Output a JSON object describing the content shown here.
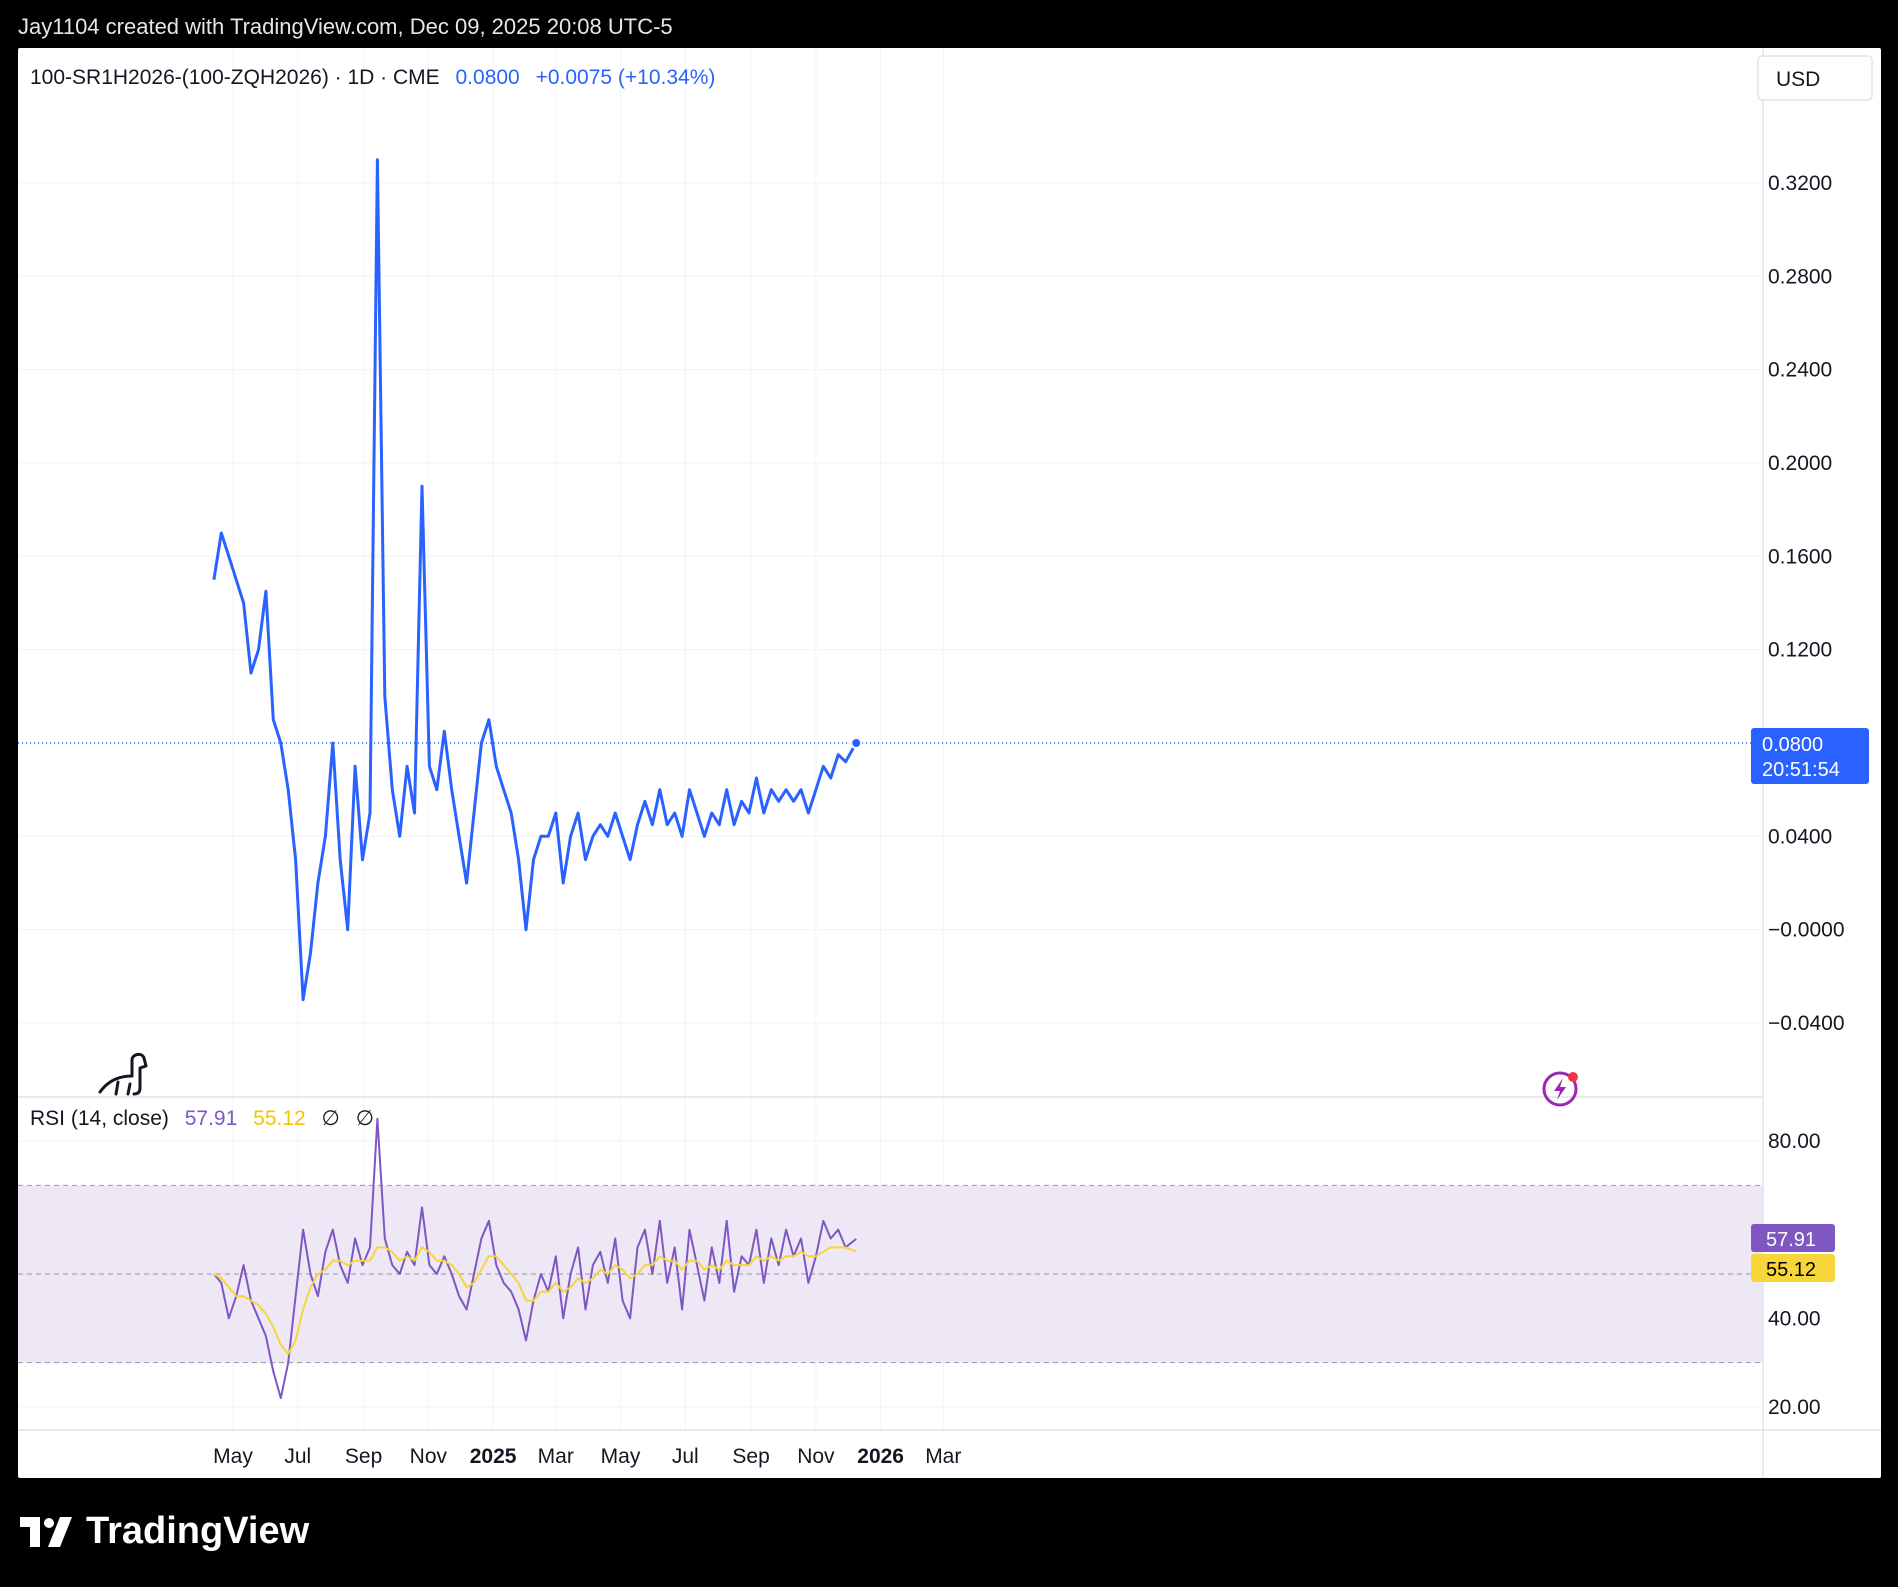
{
  "header": {
    "credit": "Jay1104 created with TradingView.com, Dec 09, 2025 20:08 UTC-5"
  },
  "legend": {
    "symbol": "100-SR1H2026-(100-ZQH2026) · 1D · CME",
    "last": "0.0800",
    "change": "+0.0075 (+10.34%)"
  },
  "currency": "USD",
  "price_axis": {
    "ticks": [
      "0.3200",
      "0.2800",
      "0.2400",
      "0.2000",
      "0.1600",
      "0.1200",
      "0.0400",
      "−0.0000",
      "−0.0400"
    ],
    "last_label": "0.0800",
    "countdown": "20:51:54"
  },
  "rsi": {
    "title": "RSI (14, close)",
    "value": "57.91",
    "ma_value": "55.12",
    "null1": "∅",
    "null2": "∅",
    "ticks": [
      "80.00",
      "40.00",
      "20.00"
    ]
  },
  "time_axis": [
    "May",
    "Jul",
    "Sep",
    "Nov",
    "2025",
    "Mar",
    "May",
    "Jul",
    "Sep",
    "Nov",
    "2026",
    "Mar"
  ],
  "footer": {
    "brand": "TradingView"
  },
  "colors": {
    "price_line": "#2962ff",
    "rsi_line": "#7e57c2",
    "rsi_ma": "#f7d63a",
    "rsi_band": "#ede7f6"
  },
  "chart_data": [
    {
      "type": "line",
      "title": "100-SR1H2026-(100-ZQH2026) · 1D · CME",
      "x": [
        "2024-04-13",
        "2024-04-20",
        "2024-04-27",
        "2024-05-04",
        "2024-05-11",
        "2024-05-18",
        "2024-05-25",
        "2024-06-01",
        "2024-06-08",
        "2024-06-15",
        "2024-06-22",
        "2024-06-29",
        "2024-07-06",
        "2024-07-13",
        "2024-07-20",
        "2024-07-27",
        "2024-08-03",
        "2024-08-10",
        "2024-08-17",
        "2024-08-24",
        "2024-08-31",
        "2024-09-07",
        "2024-09-14",
        "2024-09-21",
        "2024-09-28",
        "2024-10-05",
        "2024-10-12",
        "2024-10-19",
        "2024-10-26",
        "2024-11-02",
        "2024-11-09",
        "2024-11-16",
        "2024-11-23",
        "2024-11-30",
        "2024-12-07",
        "2024-12-14",
        "2024-12-21",
        "2024-12-28",
        "2025-01-04",
        "2025-01-11",
        "2025-01-18",
        "2025-01-25",
        "2025-02-01",
        "2025-02-08",
        "2025-02-15",
        "2025-02-22",
        "2025-03-01",
        "2025-03-08",
        "2025-03-15",
        "2025-03-22",
        "2025-03-29",
        "2025-04-05",
        "2025-04-12",
        "2025-04-19",
        "2025-04-26",
        "2025-05-03",
        "2025-05-10",
        "2025-05-17",
        "2025-05-24",
        "2025-05-31",
        "2025-06-07",
        "2025-06-14",
        "2025-06-21",
        "2025-06-28",
        "2025-07-05",
        "2025-07-12",
        "2025-07-19",
        "2025-07-26",
        "2025-08-02",
        "2025-08-09",
        "2025-08-16",
        "2025-08-23",
        "2025-08-30",
        "2025-09-06",
        "2025-09-13",
        "2025-09-20",
        "2025-09-27",
        "2025-10-04",
        "2025-10-11",
        "2025-10-18",
        "2025-10-25",
        "2025-11-01",
        "2025-11-08",
        "2025-11-15",
        "2025-11-22",
        "2025-11-29",
        "2025-12-09"
      ],
      "series": [
        {
          "values": [
            0.15,
            0.17,
            0.16,
            0.15,
            0.14,
            0.11,
            0.12,
            0.145,
            0.09,
            0.08,
            0.06,
            0.03,
            -0.03,
            -0.01,
            0.02,
            0.04,
            0.08,
            0.03,
            0.0,
            0.07,
            0.03,
            0.05,
            0.33,
            0.1,
            0.06,
            0.04,
            0.07,
            0.05,
            0.19,
            0.07,
            0.06,
            0.085,
            0.06,
            0.04,
            0.02,
            0.05,
            0.08,
            0.09,
            0.07,
            0.06,
            0.05,
            0.03,
            0.0,
            0.03,
            0.04,
            0.04,
            0.05,
            0.02,
            0.04,
            0.05,
            0.03,
            0.04,
            0.045,
            0.04,
            0.05,
            0.04,
            0.03,
            0.045,
            0.055,
            0.045,
            0.06,
            0.045,
            0.05,
            0.04,
            0.06,
            0.05,
            0.04,
            0.05,
            0.045,
            0.06,
            0.045,
            0.055,
            0.05,
            0.065,
            0.05,
            0.06,
            0.055,
            0.06,
            0.055,
            0.06,
            0.05,
            0.06,
            0.07,
            0.065,
            0.075,
            0.072,
            0.08
          ]
        }
      ],
      "ylim": [
        -0.06,
        0.36
      ],
      "grid": true
    },
    {
      "type": "line",
      "title": "RSI (14, close)",
      "x": [
        "2024-04-13",
        "2024-04-20",
        "2024-04-27",
        "2024-05-04",
        "2024-05-11",
        "2024-05-18",
        "2024-05-25",
        "2024-06-01",
        "2024-06-08",
        "2024-06-15",
        "2024-06-22",
        "2024-06-29",
        "2024-07-06",
        "2024-07-13",
        "2024-07-20",
        "2024-07-27",
        "2024-08-03",
        "2024-08-10",
        "2024-08-17",
        "2024-08-24",
        "2024-08-31",
        "2024-09-07",
        "2024-09-14",
        "2024-09-21",
        "2024-09-28",
        "2024-10-05",
        "2024-10-12",
        "2024-10-19",
        "2024-10-26",
        "2024-11-02",
        "2024-11-09",
        "2024-11-16",
        "2024-11-23",
        "2024-11-30",
        "2024-12-07",
        "2024-12-14",
        "2024-12-21",
        "2024-12-28",
        "2025-01-04",
        "2025-01-11",
        "2025-01-18",
        "2025-01-25",
        "2025-02-01",
        "2025-02-08",
        "2025-02-15",
        "2025-02-22",
        "2025-03-01",
        "2025-03-08",
        "2025-03-15",
        "2025-03-22",
        "2025-03-29",
        "2025-04-05",
        "2025-04-12",
        "2025-04-19",
        "2025-04-26",
        "2025-05-03",
        "2025-05-10",
        "2025-05-17",
        "2025-05-24",
        "2025-05-31",
        "2025-06-07",
        "2025-06-14",
        "2025-06-21",
        "2025-06-28",
        "2025-07-05",
        "2025-07-12",
        "2025-07-19",
        "2025-07-26",
        "2025-08-02",
        "2025-08-09",
        "2025-08-16",
        "2025-08-23",
        "2025-08-30",
        "2025-09-06",
        "2025-09-13",
        "2025-09-20",
        "2025-09-27",
        "2025-10-04",
        "2025-10-11",
        "2025-10-18",
        "2025-10-25",
        "2025-11-01",
        "2025-11-08",
        "2025-11-15",
        "2025-11-22",
        "2025-11-29",
        "2025-12-09"
      ],
      "series": [
        {
          "values": [
            50,
            48,
            40,
            45,
            52,
            44,
            40,
            36,
            28,
            22,
            30,
            45,
            60,
            50,
            45,
            55,
            60,
            52,
            48,
            58,
            52,
            56,
            85,
            58,
            52,
            50,
            55,
            52,
            65,
            52,
            50,
            54,
            50,
            45,
            42,
            50,
            58,
            62,
            52,
            48,
            46,
            42,
            35,
            44,
            50,
            46,
            54,
            40,
            50,
            56,
            42,
            52,
            55,
            48,
            58,
            44,
            40,
            56,
            60,
            50,
            62,
            48,
            56,
            42,
            60,
            52,
            44,
            56,
            48,
            62,
            46,
            54,
            52,
            60,
            48,
            58,
            52,
            60,
            54,
            58,
            48,
            54,
            62,
            58,
            60,
            56,
            57.91
          ]
        },
        {
          "values": [
            50,
            49,
            47,
            45,
            45,
            44,
            43,
            41,
            38,
            34,
            32,
            35,
            42,
            47,
            50,
            51,
            53,
            53,
            52,
            53,
            53,
            53,
            56,
            56,
            55,
            53,
            54,
            53,
            56,
            55,
            53,
            53,
            52,
            50,
            47,
            48,
            51,
            54,
            54,
            52,
            50,
            48,
            44,
            44,
            46,
            46,
            48,
            46,
            47,
            49,
            48,
            49,
            51,
            50,
            52,
            51,
            49,
            50,
            52,
            52,
            54,
            53,
            53,
            51,
            53,
            53,
            51,
            52,
            51,
            53,
            52,
            52,
            52,
            54,
            53,
            54,
            53,
            54,
            54,
            55,
            54,
            54,
            55,
            56,
            56,
            56,
            55.12
          ]
        }
      ],
      "ylim": [
        15,
        90
      ],
      "bands": [
        30,
        70
      ],
      "grid": true
    }
  ]
}
